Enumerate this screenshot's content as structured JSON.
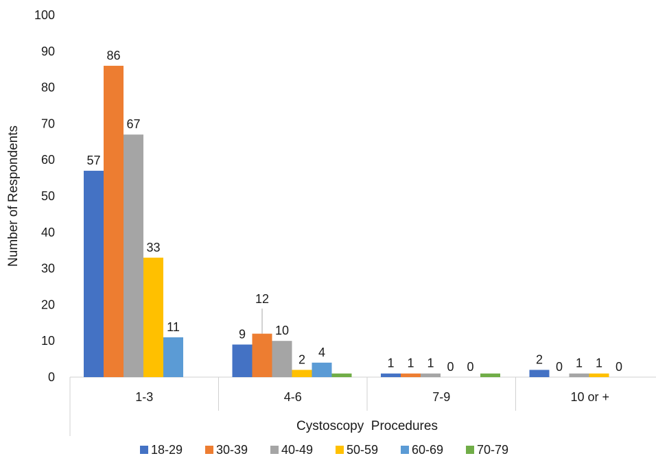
{
  "chart_data": {
    "type": "bar",
    "title": "",
    "xlabel": "Cystoscopy  Procedures",
    "ylabel": "Number of Respondents",
    "ylim": [
      0,
      100
    ],
    "yticks": [
      "0",
      "10",
      "20",
      "30",
      "40",
      "50",
      "60",
      "70",
      "80",
      "90",
      "100"
    ],
    "grid": false,
    "legend_position": "bottom",
    "categories": [
      "1-3",
      "4-6",
      "7-9",
      "10 or +"
    ],
    "series": [
      {
        "name": "18-29",
        "color": "#4472c4",
        "values": [
          57,
          9,
          1,
          2
        ],
        "labels": [
          "57",
          "9",
          "1",
          "2"
        ]
      },
      {
        "name": "30-39",
        "color": "#ed7d31",
        "values": [
          86,
          12,
          1,
          0
        ],
        "labels": [
          "86",
          "12",
          "1",
          "0"
        ]
      },
      {
        "name": "40-49",
        "color": "#a5a5a5",
        "values": [
          67,
          10,
          1,
          1
        ],
        "labels": [
          "67",
          "10",
          "1",
          "1"
        ]
      },
      {
        "name": "50-59",
        "color": "#ffc000",
        "values": [
          33,
          2,
          0,
          1
        ],
        "labels": [
          "33",
          "2",
          "0",
          "1"
        ]
      },
      {
        "name": "60-69",
        "color": "#5b9bd5",
        "values": [
          11,
          4,
          0,
          0
        ],
        "labels": [
          "11",
          "4",
          "0",
          "0"
        ]
      },
      {
        "name": "70-79",
        "color": "#70ad47",
        "values": [
          0,
          1,
          1,
          0
        ],
        "labels": [
          "",
          "",
          "",
          ""
        ]
      }
    ]
  }
}
